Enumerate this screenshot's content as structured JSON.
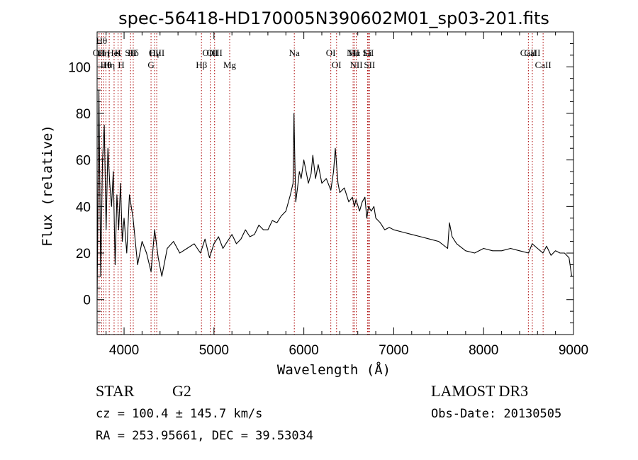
{
  "chart_data": {
    "type": "line",
    "title": "spec-56418-HD170005N390602M01_sp03-201.fits",
    "xlabel": "Wavelength (Å)",
    "ylabel": "Flux (relative)",
    "xlim": [
      3700,
      9000
    ],
    "ylim": [
      -15,
      115
    ],
    "x_ticks": [
      4000,
      5000,
      6000,
      7000,
      8000,
      9000
    ],
    "x_tick_labels": [
      "4000",
      "5000",
      "6000",
      "7000",
      "8000",
      "9000"
    ],
    "y_ticks": [
      0,
      20,
      40,
      60,
      80,
      100
    ],
    "y_tick_labels": [
      "0",
      "20",
      "40",
      "60",
      "80",
      "100"
    ],
    "grid": false,
    "series": [
      {
        "color": "#000000",
        "x": [
          3700,
          3720,
          3740,
          3760,
          3780,
          3800,
          3820,
          3840,
          3860,
          3880,
          3900,
          3920,
          3940,
          3960,
          3980,
          4000,
          4030,
          4060,
          4100,
          4150,
          4200,
          4250,
          4300,
          4340,
          4380,
          4420,
          4480,
          4550,
          4620,
          4700,
          4780,
          4850,
          4900,
          4950,
          5000,
          5050,
          5100,
          5150,
          5200,
          5250,
          5300,
          5350,
          5400,
          5450,
          5500,
          5550,
          5600,
          5650,
          5700,
          5750,
          5800,
          5850,
          5880,
          5890,
          5900,
          5910,
          5930,
          5950,
          5970,
          6000,
          6020,
          6050,
          6080,
          6100,
          6130,
          6160,
          6200,
          6250,
          6300,
          6330,
          6350,
          6380,
          6400,
          6450,
          6500,
          6540,
          6563,
          6580,
          6620,
          6650,
          6680,
          6700,
          6720,
          6750,
          6780,
          6800,
          6850,
          6900,
          6950,
          7000,
          7100,
          7200,
          7300,
          7400,
          7500,
          7600,
          7620,
          7650,
          7700,
          7800,
          7900,
          8000,
          8100,
          8200,
          8300,
          8400,
          8500,
          8540,
          8600,
          8660,
          8700,
          8750,
          8800,
          8850,
          8900,
          8950,
          8980,
          9000
        ],
        "y": [
          0,
          90,
          10,
          60,
          75,
          30,
          65,
          50,
          40,
          55,
          15,
          45,
          30,
          50,
          25,
          35,
          20,
          45,
          35,
          15,
          25,
          20,
          12,
          30,
          18,
          10,
          22,
          25,
          20,
          22,
          24,
          20,
          26,
          18,
          24,
          27,
          22,
          25,
          28,
          24,
          26,
          30,
          27,
          28,
          32,
          30,
          30,
          34,
          33,
          36,
          38,
          45,
          50,
          80,
          60,
          42,
          48,
          55,
          52,
          60,
          56,
          50,
          54,
          62,
          52,
          58,
          50,
          52,
          47,
          55,
          65,
          50,
          46,
          48,
          42,
          44,
          40,
          43,
          38,
          42,
          44,
          35,
          40,
          38,
          40,
          35,
          33,
          30,
          31,
          30,
          29,
          28,
          27,
          26,
          25,
          22,
          33,
          27,
          24,
          21,
          20,
          22,
          21,
          21,
          22,
          21,
          20,
          24,
          22,
          20,
          23,
          19,
          21,
          20,
          20,
          18,
          10,
          10
        ]
      }
    ],
    "line_markers": [
      {
        "x": 3722,
        "label": "OII",
        "row": 2
      },
      {
        "x": 3750,
        "label": "Hθ",
        "row": 0
      },
      {
        "x": 3771,
        "label": "Hη",
        "row": 1
      },
      {
        "x": 3798,
        "label": "Hθ",
        "row": 3
      },
      {
        "x": 3835,
        "label": "Hη",
        "row": 3
      },
      {
        "x": 3889,
        "label": "HeI",
        "row": 2
      },
      {
        "x": 3933,
        "label": "K",
        "row": 1
      },
      {
        "x": 3968,
        "label": "H",
        "row": 3
      },
      {
        "x": 4072,
        "label": "SII",
        "row": 2
      },
      {
        "x": 4102,
        "label": "Hδ",
        "row": 1
      },
      {
        "x": 4300,
        "label": "G",
        "row": 3
      },
      {
        "x": 4340,
        "label": "Hγ",
        "row": 2
      },
      {
        "x": 4363,
        "label": "OIII",
        "row": 1
      },
      {
        "x": 4861,
        "label": "Hβ",
        "row": 3
      },
      {
        "x": 4959,
        "label": "OIII",
        "row": 2
      },
      {
        "x": 5007,
        "label": "OIII",
        "row": 1
      },
      {
        "x": 5175,
        "label": "Mg",
        "row": 3
      },
      {
        "x": 5894,
        "label": "Na",
        "row": 2
      },
      {
        "x": 6300,
        "label": "OI",
        "row": 1
      },
      {
        "x": 6364,
        "label": "OI",
        "row": 3
      },
      {
        "x": 6548,
        "label": "NII",
        "row": 2
      },
      {
        "x": 6563,
        "label": "Hα",
        "row": 1
      },
      {
        "x": 6583,
        "label": "NII",
        "row": 3
      },
      {
        "x": 6708,
        "label": "Li",
        "row": 2
      },
      {
        "x": 6716,
        "label": "SII",
        "row": 1
      },
      {
        "x": 6731,
        "label": "SII",
        "row": 3
      },
      {
        "x": 8498,
        "label": "CaII",
        "row": 2
      },
      {
        "x": 8542,
        "label": "CaII",
        "row": 1
      },
      {
        "x": 8662,
        "label": "CaII",
        "row": 3
      }
    ],
    "marker_color": "#aa0000"
  },
  "info": {
    "object_class": "STAR",
    "subclass": "G2",
    "survey": "LAMOST DR3",
    "cz": "cz = 100.4 ± 145.7 km/s",
    "obs_date": "Obs-Date: 20130505",
    "coords": "RA = 253.95661, DEC =  39.53034"
  }
}
